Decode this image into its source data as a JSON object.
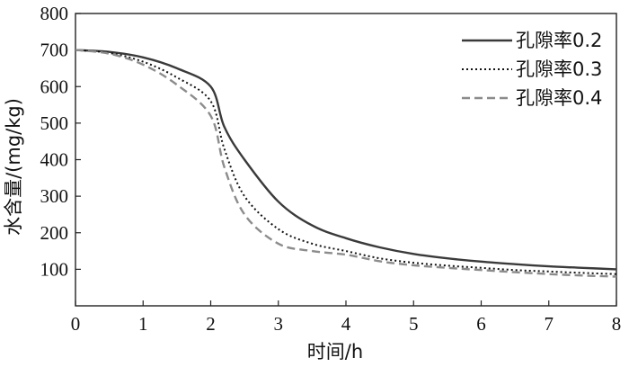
{
  "chart_data": {
    "type": "line",
    "xlabel": "时间/h",
    "ylabel": "水含量/(mg/kg)",
    "xlim": [
      0,
      8
    ],
    "ylim": [
      0,
      800
    ],
    "xticks": [
      0,
      1,
      2,
      3,
      4,
      5,
      6,
      7,
      8
    ],
    "yticks": [
      100,
      200,
      300,
      400,
      500,
      600,
      700,
      800
    ],
    "grid": false,
    "legend_position": "top-right",
    "series": [
      {
        "name": "孔隙率0.2",
        "color": "#3a3a3a",
        "style": "solid",
        "x": [
          0,
          0.5,
          1.0,
          1.5,
          2.0,
          2.2,
          2.5,
          3.0,
          3.5,
          4.0,
          4.5,
          5.0,
          5.5,
          6.0,
          6.5,
          7.0,
          7.5,
          8.0
        ],
        "y": [
          700,
          695,
          680,
          650,
          600,
          490,
          400,
          285,
          220,
          185,
          160,
          142,
          130,
          121,
          114,
          108,
          104,
          100
        ]
      },
      {
        "name": "孔隙率0.3",
        "color": "#111111",
        "style": "dotted",
        "x": [
          0,
          0.5,
          1.0,
          1.5,
          2.0,
          2.2,
          2.5,
          3.0,
          3.5,
          4.0,
          4.5,
          5.0,
          5.5,
          6.0,
          6.5,
          7.0,
          7.5,
          8.0
        ],
        "y": [
          700,
          692,
          668,
          625,
          560,
          430,
          300,
          210,
          170,
          150,
          130,
          118,
          110,
          104,
          98,
          94,
          90,
          87
        ]
      },
      {
        "name": "孔隙率0.4",
        "color": "#8c8c8c",
        "style": "dashed",
        "x": [
          0,
          0.5,
          1.0,
          1.5,
          2.0,
          2.2,
          2.5,
          3.0,
          3.5,
          4.0,
          4.5,
          5.0,
          5.5,
          6.0,
          6.5,
          7.0,
          7.5,
          8.0
        ],
        "y": [
          700,
          690,
          660,
          605,
          520,
          380,
          250,
          170,
          150,
          140,
          122,
          111,
          104,
          98,
          92,
          87,
          83,
          80
        ]
      }
    ]
  }
}
